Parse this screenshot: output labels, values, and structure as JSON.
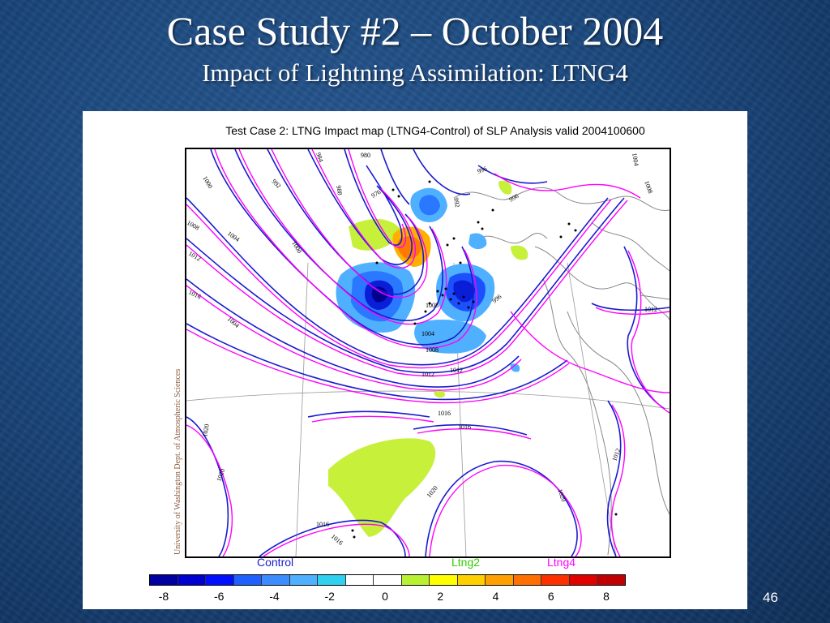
{
  "slide": {
    "title": "Case Study #2 – October 2004",
    "subtitle": "Impact of Lightning Assimilation: LTNG4",
    "page_number": "46"
  },
  "figure": {
    "map_title": "Test Case 2: LTNG Impact map (LTNG4-Control) of SLP Analysis valid 2004100600",
    "credit": "University of Washington Dept. of Atmospheric Sciences",
    "legend": {
      "control": {
        "label": "Control",
        "color": "#1a1ad0"
      },
      "ltng2": {
        "label": "Ltng2",
        "color": "#33cc00"
      },
      "ltng4": {
        "label": "Ltng4",
        "color": "#ff00ff"
      }
    },
    "colorbar": {
      "colors": [
        "#0000a0",
        "#0000d0",
        "#0010ff",
        "#2060ff",
        "#3c8cff",
        "#4fb0ff",
        "#30d0f0",
        "#ffffff",
        "#ffffff",
        "#b8f032",
        "#ffff00",
        "#ffd000",
        "#ffa000",
        "#ff7000",
        "#ff3000",
        "#e00000",
        "#c00000"
      ],
      "tick_labels": [
        "-8",
        "-6",
        "-4",
        "-2",
        "0",
        "2",
        "4",
        "6",
        "8"
      ]
    },
    "isobar_labels": [
      "1000",
      "992",
      "984",
      "980",
      "988",
      "976",
      "992",
      "996",
      "1008",
      "1004",
      "1012",
      "1016",
      "1004",
      "996",
      "1008",
      "1000",
      "1004",
      "1012",
      "1008",
      "1004",
      "1008",
      "1012",
      "1012",
      "1016",
      "1016",
      "1020",
      "1020",
      "1020",
      "1020",
      "1016",
      "1016",
      "1012",
      "996"
    ]
  }
}
